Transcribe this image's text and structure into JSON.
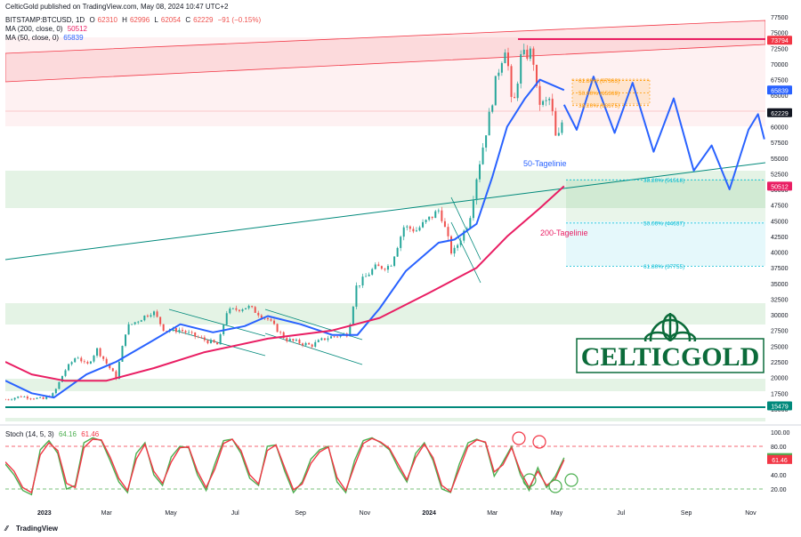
{
  "header": {
    "published": "CelticGold published on TradingView.com, May 08, 2024 10:47 UTC+2",
    "symbol": "BITSTAMP:BTCUSD, 1D",
    "ohlc": {
      "o_label": "O",
      "o": "62310",
      "h_label": "H",
      "h": "62996",
      "l_label": "L",
      "l": "62054",
      "c_label": "C",
      "c": "62229",
      "chg": "−91 (−0.15%)"
    },
    "ma200": {
      "label": "MA (200, close, 0)",
      "value": "50512"
    },
    "ma50": {
      "label": "MA (50, close, 0)",
      "value": "65839"
    },
    "stoch": {
      "label": "Stoch (14, 5, 3)",
      "k": "64.16",
      "d": "61.46"
    }
  },
  "footer": {
    "brand": "TradingView"
  },
  "colors": {
    "up": "#26a69a",
    "down": "#ef5350",
    "ma50": "#2962ff",
    "ma200": "#e91e63",
    "channel": "#f23645",
    "support": "#4caf50",
    "forecast": "#2962ff",
    "fib": "#ff9800",
    "fib_low": "#00bcd4",
    "stoch_k": "#4caf50",
    "stoch_d": "#f23645",
    "hline": "#00897b",
    "label_bg": "#131722"
  },
  "logo": {
    "text": "CELTICGOLD"
  },
  "chart_data": [
    {
      "type": "candlestick",
      "title": "BITSTAMP:BTCUSD, 1D",
      "x_ticks": [
        "2023",
        "Mar",
        "May",
        "Jul",
        "Sep",
        "Nov",
        "2024",
        "Mar",
        "May",
        "Jul",
        "Sep",
        "Nov"
      ],
      "y_ticks": [
        15000,
        17500,
        20000,
        22500,
        25000,
        27500,
        30000,
        32500,
        35000,
        37500,
        40000,
        42500,
        45000,
        47500,
        50000,
        52500,
        55000,
        57500,
        60000,
        62500,
        65000,
        67500,
        70000,
        72500,
        75000,
        77500
      ],
      "y_tick_labels": [
        "15000",
        "17500",
        "20000",
        "22500",
        "25000",
        "27500",
        "30000",
        "32500",
        "35000",
        "37500",
        "40000",
        "42500",
        "45000",
        "47500",
        "50000",
        "52500",
        "55000",
        "57500",
        "60000",
        "62500",
        "65000",
        "67500",
        "70000",
        "72500",
        "75000",
        "77500"
      ],
      "ylim": [
        13000,
        78500
      ],
      "xlim": [
        "2022-11-25",
        "2024-11-15"
      ],
      "price_path": [
        [
          "2022-11-25",
          16500
        ],
        [
          "2022-12-10",
          17000
        ],
        [
          "2022-12-31",
          16550
        ],
        [
          "2023-01-10",
          17400
        ],
        [
          "2023-01-20",
          21000
        ],
        [
          "2023-02-01",
          23500
        ],
        [
          "2023-02-10",
          21800
        ],
        [
          "2023-02-20",
          24500
        ],
        [
          "2023-03-10",
          20000
        ],
        [
          "2023-03-20",
          28000
        ],
        [
          "2023-04-14",
          30600
        ],
        [
          "2023-04-25",
          27500
        ],
        [
          "2023-05-10",
          27600
        ],
        [
          "2023-05-25",
          26500
        ],
        [
          "2023-06-15",
          25200
        ],
        [
          "2023-06-23",
          30500
        ],
        [
          "2023-07-13",
          31300
        ],
        [
          "2023-08-01",
          29300
        ],
        [
          "2023-08-18",
          26100
        ],
        [
          "2023-09-11",
          25100
        ],
        [
          "2023-09-25",
          26300
        ],
        [
          "2023-10-16",
          27000
        ],
        [
          "2023-10-24",
          34500
        ],
        [
          "2023-11-10",
          37500
        ],
        [
          "2023-11-25",
          37800
        ],
        [
          "2023-12-08",
          44000
        ],
        [
          "2023-12-20",
          43500
        ],
        [
          "2024-01-11",
          46800
        ],
        [
          "2024-01-23",
          39500
        ],
        [
          "2024-02-08",
          45000
        ],
        [
          "2024-02-15",
          52000
        ],
        [
          "2024-02-28",
          62500
        ],
        [
          "2024-03-05",
          68000
        ],
        [
          "2024-03-14",
          73300
        ],
        [
          "2024-03-20",
          62000
        ],
        [
          "2024-03-28",
          71000
        ],
        [
          "2024-04-08",
          72000
        ],
        [
          "2024-04-13",
          64000
        ],
        [
          "2024-04-19",
          63500
        ],
        [
          "2024-04-25",
          64500
        ],
        [
          "2024-05-01",
          57000
        ],
        [
          "2024-05-08",
          62229
        ]
      ],
      "last": {
        "close": 62229
      }
    },
    {
      "type": "line",
      "series": [
        {
          "name": "50-Tagelinie",
          "points": [
            [
              "2022-11-25",
              19500
            ],
            [
              "2022-12-20",
              17500
            ],
            [
              "2023-01-10",
              16800
            ],
            [
              "2023-02-10",
              20500
            ],
            [
              "2023-03-10",
              22500
            ],
            [
              "2023-04-10",
              25500
            ],
            [
              "2023-05-10",
              28500
            ],
            [
              "2023-06-10",
              27200
            ],
            [
              "2023-07-10",
              28200
            ],
            [
              "2023-08-01",
              29800
            ],
            [
              "2023-09-01",
              28500
            ],
            [
              "2023-10-01",
              26800
            ],
            [
              "2023-10-25",
              26800
            ],
            [
              "2023-11-15",
              31000
            ],
            [
              "2023-12-10",
              37000
            ],
            [
              "2024-01-10",
              41500
            ],
            [
              "2024-01-25",
              42000
            ],
            [
              "2024-02-15",
              44500
            ],
            [
              "2024-03-01",
              52000
            ],
            [
              "2024-03-15",
              60000
            ],
            [
              "2024-04-01",
              64500
            ],
            [
              "2024-04-15",
              67500
            ],
            [
              "2024-05-08",
              65839
            ]
          ]
        },
        {
          "name": "200-Tagelinie",
          "points": [
            [
              "2022-11-25",
              22500
            ],
            [
              "2022-12-20",
              20500
            ],
            [
              "2023-01-20",
              19500
            ],
            [
              "2023-03-01",
              19500
            ],
            [
              "2023-04-15",
              21500
            ],
            [
              "2023-06-01",
              24000
            ],
            [
              "2023-08-01",
              26200
            ],
            [
              "2023-10-01",
              27500
            ],
            [
              "2023-11-15",
              29500
            ],
            [
              "2024-01-01",
              33500
            ],
            [
              "2024-02-15",
              37500
            ],
            [
              "2024-03-15",
              42500
            ],
            [
              "2024-04-15",
              47000
            ],
            [
              "2024-05-08",
              50512
            ]
          ]
        },
        {
          "name": "forecast",
          "points": [
            [
              "2024-05-08",
              63500
            ],
            [
              "2024-05-20",
              59500
            ],
            [
              "2024-06-05",
              68000
            ],
            [
              "2024-06-25",
              59000
            ],
            [
              "2024-07-12",
              67000
            ],
            [
              "2024-08-01",
              56000
            ],
            [
              "2024-08-20",
              64500
            ],
            [
              "2024-09-08",
              53000
            ],
            [
              "2024-09-25",
              57000
            ],
            [
              "2024-10-12",
              50000
            ],
            [
              "2024-10-30",
              59500
            ],
            [
              "2024-11-08",
              62000
            ],
            [
              "2024-11-14",
              58000
            ]
          ]
        }
      ]
    },
    {
      "type": "annotations",
      "labels": [
        "50-Tagelinie",
        "200-Tagelinie"
      ],
      "fib_levels": [
        {
          "label": "61.80% (67363)",
          "value": 67363
        },
        {
          "label": "50.00% (65369)",
          "value": 65369
        },
        {
          "label": "38.20% (63375)",
          "value": 63375
        },
        {
          "label": "38.20% (51518)",
          "value": 51518
        },
        {
          "label": "50.00% (44637)",
          "value": 44637
        },
        {
          "label": "61.80% (37755)",
          "value": 37755
        }
      ],
      "resistance": 73794,
      "support": 15479,
      "support_zones": [
        [
          47000,
          53000
        ],
        [
          20000,
          17500
        ],
        [
          28500,
          32500
        ]
      ],
      "price_labels": [
        {
          "text": "73794",
          "value": 73794,
          "bg": "#f23645"
        },
        {
          "text": "65839",
          "value": 65839,
          "bg": "#2962ff"
        },
        {
          "text": "62229",
          "value": 62229,
          "bg": "#131722"
        },
        {
          "text": "50512",
          "value": 50512,
          "bg": "#e91e63"
        },
        {
          "text": "15479",
          "value": 15479,
          "bg": "#00897b"
        }
      ]
    },
    {
      "type": "line",
      "title": "Stoch (14, 5, 3)",
      "ylim": [
        0,
        105
      ],
      "y_ticks": [
        20,
        40,
        60,
        80,
        100
      ],
      "y_tick_labels": [
        "20.00",
        "40.00",
        "60.00",
        "80.00",
        "100.00"
      ],
      "levels": [
        80,
        20
      ],
      "series": [
        {
          "name": "%K",
          "values": [
            55,
            40,
            18,
            12,
            75,
            88,
            70,
            20,
            25,
            85,
            92,
            88,
            60,
            30,
            15,
            70,
            85,
            40,
            25,
            65,
            80,
            78,
            40,
            18,
            55,
            88,
            90,
            70,
            35,
            25,
            80,
            82,
            45,
            15,
            30,
            62,
            75,
            80,
            30,
            15,
            60,
            88,
            92,
            85,
            75,
            50,
            30,
            70,
            85,
            60,
            20,
            15,
            55,
            85,
            90,
            85,
            38,
            58,
            80,
            40,
            18,
            50,
            22,
            38,
            64
          ]
        },
        {
          "name": "%D",
          "values": [
            58,
            45,
            22,
            15,
            68,
            85,
            74,
            28,
            22,
            78,
            90,
            89,
            65,
            35,
            18,
            62,
            83,
            45,
            28,
            58,
            78,
            79,
            45,
            22,
            48,
            84,
            90,
            74,
            40,
            27,
            74,
            82,
            50,
            19,
            27,
            56,
            72,
            79,
            36,
            18,
            53,
            84,
            91,
            86,
            77,
            55,
            33,
            64,
            83,
            64,
            25,
            16,
            48,
            80,
            89,
            86,
            44,
            54,
            78,
            45,
            22,
            45,
            25,
            34,
            61
          ]
        }
      ],
      "last": {
        "k": 64.16,
        "d": 61.46
      }
    }
  ]
}
